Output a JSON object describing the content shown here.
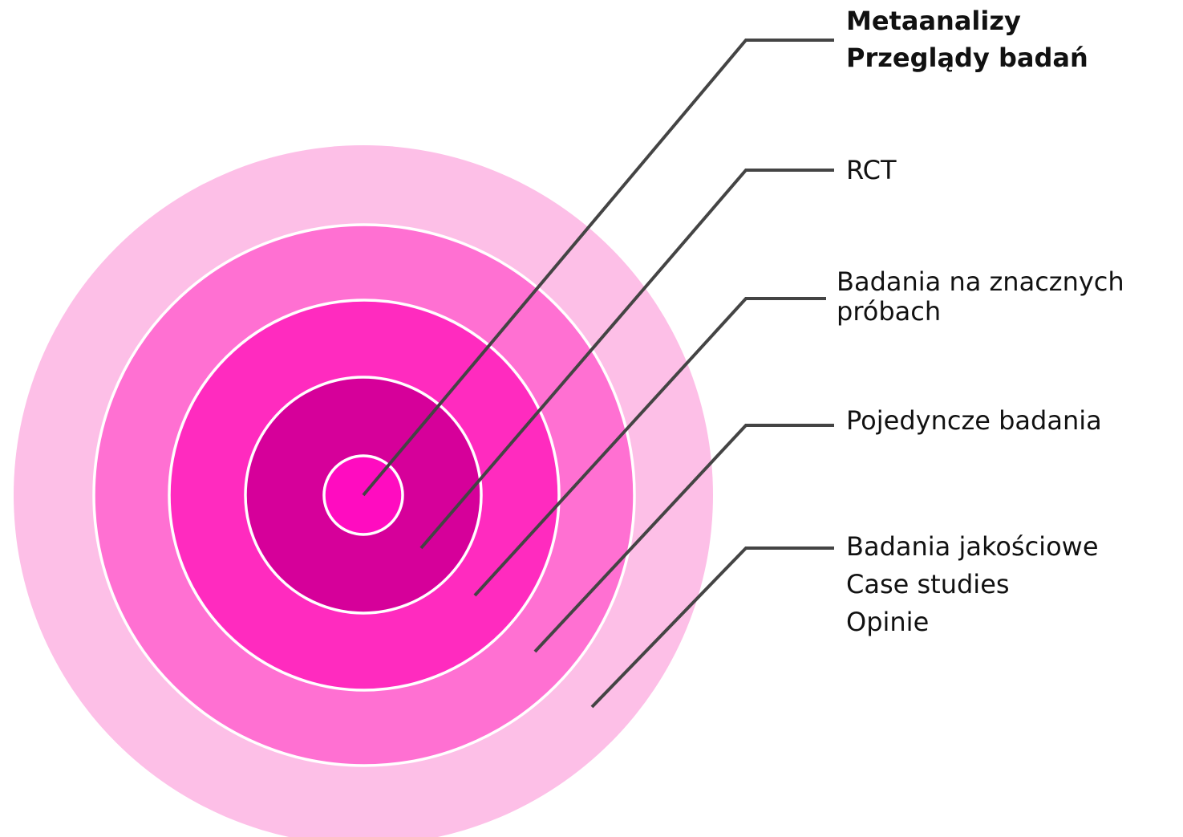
{
  "levels": [
    {
      "lines": [
        "Metaanalizy",
        "Przeglądy badań"
      ]
    },
    {
      "lines": [
        "RCT"
      ]
    },
    {
      "lines": [
        "Badania na znacznych",
        "próbach"
      ]
    },
    {
      "lines": [
        "Pojedyncze badania"
      ]
    },
    {
      "lines": [
        "Badania jakościowe",
        "Case studies",
        "Opinie"
      ]
    }
  ]
}
